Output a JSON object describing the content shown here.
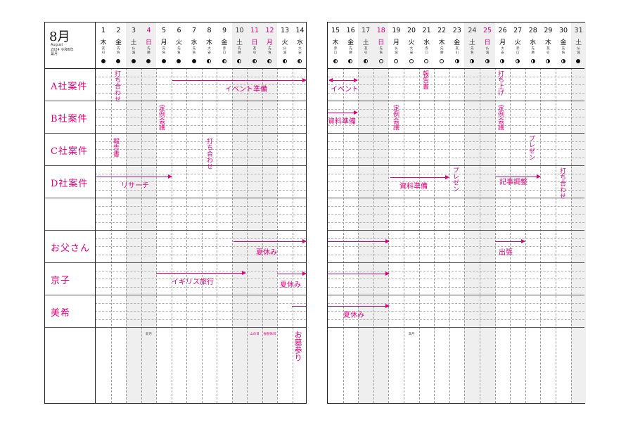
{
  "header": {
    "month": "8月",
    "month_en": "August",
    "year_line": "2024 令和6年",
    "month_jp_old": "葉月"
  },
  "categories": [
    "A社案件",
    "B社案件",
    "C社案件",
    "D社案件",
    "",
    "お父さん",
    "京子",
    "美希",
    ""
  ],
  "days_left": [
    {
      "d": "1",
      "w": "木",
      "r": "友引",
      "m": "full",
      "t": ""
    },
    {
      "d": "2",
      "w": "金",
      "r": "先負",
      "m": "full",
      "t": ""
    },
    {
      "d": "3",
      "w": "土",
      "r": "仏滅",
      "m": "full",
      "t": "sat"
    },
    {
      "d": "4",
      "w": "日",
      "r": "先勝",
      "m": "full",
      "t": "sun"
    },
    {
      "d": "5",
      "w": "月",
      "r": "先負",
      "m": "full",
      "t": ""
    },
    {
      "d": "6",
      "w": "火",
      "r": "先負",
      "m": "full",
      "t": ""
    },
    {
      "d": "7",
      "w": "水",
      "r": "先負",
      "m": "full",
      "t": ""
    },
    {
      "d": "8",
      "w": "木",
      "r": "大安",
      "m": "half",
      "t": ""
    },
    {
      "d": "9",
      "w": "金",
      "r": "赤口",
      "m": "half",
      "t": ""
    },
    {
      "d": "10",
      "w": "土",
      "r": "先勝",
      "m": "half",
      "t": "sat"
    },
    {
      "d": "11",
      "w": "日",
      "r": "友引",
      "m": "half",
      "t": "sun"
    },
    {
      "d": "12",
      "w": "月",
      "r": "先負",
      "m": "half",
      "t": "sun"
    },
    {
      "d": "13",
      "w": "火",
      "r": "仏滅",
      "m": "half",
      "t": ""
    },
    {
      "d": "14",
      "w": "水",
      "r": "大安",
      "m": "half",
      "t": ""
    }
  ],
  "days_right": [
    {
      "d": "15",
      "w": "木",
      "r": "赤口",
      "m": "half",
      "t": ""
    },
    {
      "d": "16",
      "w": "金",
      "r": "先勝",
      "m": "half",
      "t": ""
    },
    {
      "d": "17",
      "w": "土",
      "r": "友引",
      "m": "half",
      "t": "sat"
    },
    {
      "d": "18",
      "w": "日",
      "r": "先負",
      "m": "empty",
      "t": "sun"
    },
    {
      "d": "19",
      "w": "月",
      "r": "仏滅",
      "m": "empty",
      "t": ""
    },
    {
      "d": "20",
      "w": "火",
      "r": "大安",
      "m": "empty",
      "t": ""
    },
    {
      "d": "21",
      "w": "水",
      "r": "赤口",
      "m": "empty",
      "t": ""
    },
    {
      "d": "22",
      "w": "木",
      "r": "先勝",
      "m": "empty",
      "t": ""
    },
    {
      "d": "23",
      "w": "金",
      "r": "友引",
      "m": "halfr",
      "t": ""
    },
    {
      "d": "24",
      "w": "土",
      "r": "先負",
      "m": "halfr",
      "t": "sat"
    },
    {
      "d": "25",
      "w": "日",
      "r": "仏滅",
      "m": "halfr",
      "t": "sun"
    },
    {
      "d": "26",
      "w": "月",
      "r": "大安",
      "m": "halfr",
      "t": ""
    },
    {
      "d": "27",
      "w": "火",
      "r": "赤口",
      "m": "halfr",
      "t": ""
    },
    {
      "d": "28",
      "w": "水",
      "r": "先勝",
      "m": "halfr",
      "t": ""
    },
    {
      "d": "29",
      "w": "木",
      "r": "友引",
      "m": "halfr",
      "t": ""
    },
    {
      "d": "30",
      "w": "金",
      "r": "先負",
      "m": "halfr",
      "t": ""
    },
    {
      "d": "31",
      "w": "土",
      "r": "仏滅",
      "m": "full",
      "t": "sat"
    }
  ],
  "holidays": {
    "d4": "新月",
    "d11": "山の日",
    "d12": "振替休日",
    "d20": "満月"
  },
  "notes": {
    "a_uchiawase": "打ち合わせ",
    "a_event_junbi": "イベント準備",
    "a_event": "イベント",
    "a_hokokusho": "報告書",
    "a_uchiage": "打ち上げ",
    "b_teirei_left": "定例会議",
    "b_shiryo": "資料準備",
    "b_teirei_mid": "定例会議",
    "b_teirei_right": "定例会議",
    "c_hokokusho": "報告書",
    "c_uchiawase": "打ち合わせ",
    "c_presen": "プレゼン",
    "d_research": "リサーチ",
    "d_shiryo": "資料準備",
    "d_presen": "プレゼン",
    "d_kiji": "記事調整",
    "d_uchiawase": "打ち合わせ",
    "father_natsuyasumi": "夏休み",
    "father_shutcho": "出張",
    "kyoko_igirisu": "イギリス旅行",
    "kyoko_natsuyasumi": "夏休み",
    "miki_natsuyasumi": "夏休み",
    "ohaka": "お墓参り"
  }
}
